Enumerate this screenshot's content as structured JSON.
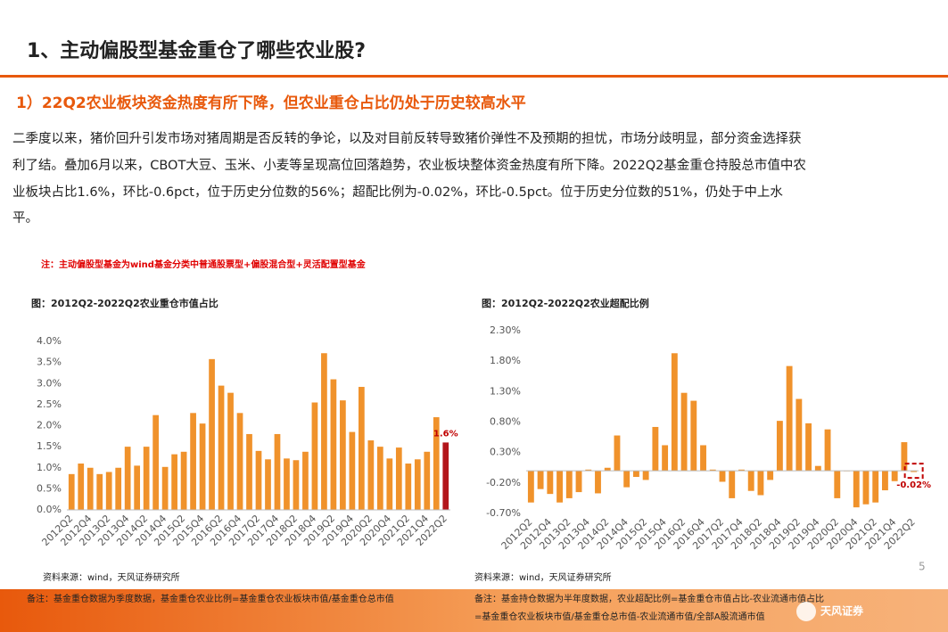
{
  "header": {
    "title": "1、主动偏股型基金重仓了哪些农业股?",
    "subtitle": "1）22Q2农业板块资金热度有所下降，但农业重仓占比仍处于历史较高水平",
    "paragraph": [
      "二季度以来，猪价回升引发市场对猪周期是否反转的争论，以及对目前反转导致猪价弹性不及预期的担忧，市场分歧明显，部分资金选择获",
      "利了结。叠加6月以来，CBOT大豆、玉米、小麦等呈现高位回落趋势，农业板块整体资金热度有所下降。2022Q2基金重仓持股总市值中农",
      "业板块占比1.6%，环比-0.6pct，位于历史分位数的56%；超配比例为-0.02%，环比-0.5pct。位于历史分位数的51%，仍处于中上水",
      "平。"
    ],
    "note": "注：主动偏股型基金为wind基金分类中普通股票型+偏股混合型+灵活配置型基金"
  },
  "chart_data": [
    {
      "type": "bar",
      "title": "图：2012Q2-2022Q2农业重仓市值占比",
      "source": "资料来源：wind，天风证券研究所",
      "categories": [
        "2012Q2",
        null,
        "2012Q4",
        null,
        "2013Q2",
        null,
        "2013Q4",
        null,
        "2014Q2",
        null,
        "2014Q4",
        null,
        "2015Q2",
        null,
        "2015Q4",
        null,
        "2016Q2",
        null,
        "2016Q4",
        null,
        "2017Q2",
        null,
        "2017Q4",
        null,
        "2018Q2",
        null,
        "2018Q4",
        null,
        "2019Q2",
        null,
        "2019Q4",
        null,
        "2020Q2",
        null,
        "2020Q4",
        null,
        "2021Q2",
        null,
        "2021Q4",
        null,
        "2022Q2"
      ],
      "values": [
        0.85,
        1.1,
        1.0,
        0.85,
        0.9,
        1.0,
        1.5,
        1.05,
        1.5,
        2.25,
        1.02,
        1.32,
        1.38,
        2.3,
        2.05,
        3.58,
        2.95,
        2.78,
        2.3,
        1.8,
        1.4,
        1.2,
        1.8,
        1.22,
        1.18,
        1.38,
        2.55,
        3.72,
        3.1,
        2.6,
        1.85,
        2.92,
        1.65,
        1.5,
        1.22,
        1.48,
        1.1,
        1.2,
        1.38,
        2.2,
        1.6
      ],
      "value_labels": [
        null,
        null,
        null,
        null,
        null,
        null,
        null,
        null,
        null,
        null,
        null,
        null,
        null,
        null,
        null,
        null,
        null,
        null,
        null,
        null,
        null,
        null,
        null,
        null,
        null,
        null,
        null,
        null,
        null,
        null,
        null,
        null,
        null,
        null,
        null,
        null,
        null,
        null,
        null,
        null,
        "1.6%"
      ],
      "colors": [
        "#f0922b",
        "#f0922b",
        "#f0922b",
        "#f0922b",
        "#f0922b",
        "#f0922b",
        "#f0922b",
        "#f0922b",
        "#f0922b",
        "#f0922b",
        "#f0922b",
        "#f0922b",
        "#f0922b",
        "#f0922b",
        "#f0922b",
        "#f0922b",
        "#f0922b",
        "#f0922b",
        "#f0922b",
        "#f0922b",
        "#f0922b",
        "#f0922b",
        "#f0922b",
        "#f0922b",
        "#f0922b",
        "#f0922b",
        "#f0922b",
        "#f0922b",
        "#f0922b",
        "#f0922b",
        "#f0922b",
        "#f0922b",
        "#f0922b",
        "#f0922b",
        "#f0922b",
        "#f0922b",
        "#f0922b",
        "#f0922b",
        "#f0922b",
        "#f0922b",
        "#b3151b"
      ],
      "label_color": "#c00000",
      "ylim": [
        0,
        4.0
      ],
      "yticks": [
        {
          "value": 0,
          "label": "0.0%"
        },
        {
          "value": 0.5,
          "label": "0.5%"
        },
        {
          "value": 1.0,
          "label": "1.0%"
        },
        {
          "value": 1.5,
          "label": "1.5%"
        },
        {
          "value": 2.0,
          "label": "2.0%"
        },
        {
          "value": 2.5,
          "label": "2.5%"
        },
        {
          "value": 3.0,
          "label": "3.0%"
        },
        {
          "value": 3.5,
          "label": "3.5%"
        },
        {
          "value": 4.0,
          "label": "4.0%"
        }
      ]
    },
    {
      "type": "bar",
      "title": "图：2012Q2-2022Q2农业超配比例",
      "source": "资料来源：wind，天风证券研究所",
      "categories": [
        "2012Q2",
        null,
        "2012Q4",
        null,
        "2013Q2",
        null,
        "2013Q4",
        null,
        "2014Q2",
        null,
        "2014Q4",
        null,
        "2015Q2",
        null,
        "2015Q4",
        null,
        "2016Q2",
        null,
        "2016Q4",
        null,
        "2017Q2",
        null,
        "2017Q4",
        null,
        "2018Q2",
        null,
        "2018Q4",
        null,
        "2019Q2",
        null,
        "2019Q4",
        null,
        "2020Q2",
        null,
        "2020Q4",
        null,
        "2021Q2",
        null,
        "2021Q4",
        null,
        "2022Q2"
      ],
      "values": [
        -0.52,
        -0.3,
        -0.38,
        -0.52,
        -0.45,
        -0.35,
        0.02,
        -0.37,
        0.05,
        0.58,
        -0.27,
        -0.1,
        -0.15,
        0.72,
        0.42,
        1.93,
        1.28,
        1.15,
        0.42,
        0.02,
        -0.18,
        -0.45,
        0.02,
        -0.33,
        -0.4,
        -0.15,
        0.82,
        1.72,
        1.18,
        0.78,
        0.08,
        0.68,
        -0.45,
        0.0,
        -0.6,
        -0.55,
        -0.52,
        -0.32,
        -0.17,
        0.47,
        -0.02
      ],
      "value_labels": [
        null,
        null,
        null,
        null,
        null,
        null,
        null,
        null,
        null,
        null,
        null,
        null,
        null,
        null,
        null,
        null,
        null,
        null,
        null,
        null,
        null,
        null,
        null,
        null,
        null,
        null,
        null,
        null,
        null,
        null,
        null,
        null,
        null,
        null,
        null,
        null,
        null,
        null,
        null,
        null,
        "-0.02%"
      ],
      "colors": [
        "#f0922b",
        "#f0922b",
        "#f0922b",
        "#f0922b",
        "#f0922b",
        "#f0922b",
        "#f0922b",
        "#f0922b",
        "#f0922b",
        "#f0922b",
        "#f0922b",
        "#f0922b",
        "#f0922b",
        "#f0922b",
        "#f0922b",
        "#f0922b",
        "#f0922b",
        "#f0922b",
        "#f0922b",
        "#f0922b",
        "#f0922b",
        "#f0922b",
        "#f0922b",
        "#f0922b",
        "#f0922b",
        "#f0922b",
        "#f0922b",
        "#f0922b",
        "#f0922b",
        "#f0922b",
        "#f0922b",
        "#f0922b",
        "#f0922b",
        "#f0922b",
        "#f0922b",
        "#f0922b",
        "#f0922b",
        "#f0922b",
        "#f0922b",
        "#f0922b",
        "#f0922b"
      ],
      "label_color": "#c00000",
      "ylim": [
        -0.7,
        2.3
      ],
      "yticks": [
        {
          "value": -0.7,
          "label": "-0.70%"
        },
        {
          "value": -0.2,
          "label": "-0.20%"
        },
        {
          "value": 0.3,
          "label": "0.30%"
        },
        {
          "value": 0.8,
          "label": "0.80%"
        },
        {
          "value": 1.3,
          "label": "1.30%"
        },
        {
          "value": 1.8,
          "label": "1.80%"
        },
        {
          "value": 2.3,
          "label": "2.30%"
        }
      ]
    }
  ],
  "footer": {
    "page": "5",
    "note_left": "备注：基金重仓数据为季度数据，基金重仓农业比例=基金重仓农业板块市值/基金重仓总市值",
    "note_right": [
      "备注：基金持仓数据为半年度数据，农业超配比例=基金重仓市值占比-农业流通市值占比",
      "=基金重仓农业板块市值/基金重仓总市值-农业流通市值/全部A股流通市值"
    ],
    "logo": "天风证券"
  }
}
